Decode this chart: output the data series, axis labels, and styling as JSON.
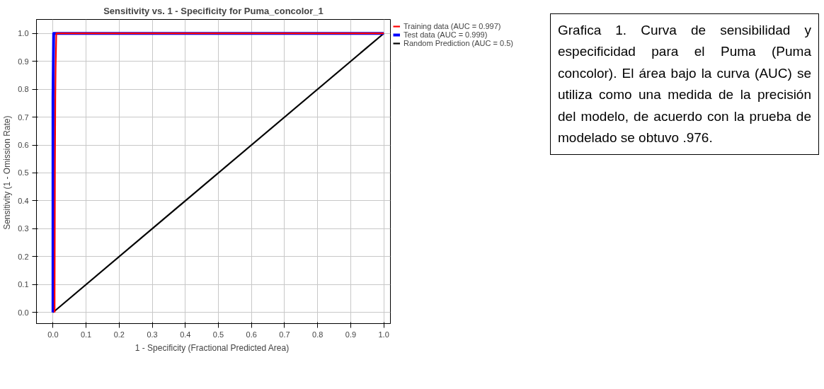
{
  "chart_data": {
    "type": "line",
    "title": "Sensitivity vs. 1 - Specificity for Puma_concolor_1",
    "xlabel": "1 - Specificity  (Fractional Predicted Area)",
    "ylabel": "Sensitivity  (1 - Omission Rate)",
    "series": [
      {
        "name": "Training data (AUC = 0.997)",
        "color": "#ff0000",
        "x": [
          0.005,
          0.005,
          0.006,
          0.007,
          0.008,
          0.01,
          1
        ],
        "values": [
          0,
          0.06,
          0.53,
          0.77,
          0.88,
          1.0,
          1.0
        ]
      },
      {
        "name": "Test data (AUC = 0.999)",
        "color": "#0000ff",
        "x": [
          0,
          0,
          0,
          0,
          0.002,
          1
        ],
        "values": [
          0,
          0.06,
          0.53,
          0.77,
          1.0,
          1.0
        ]
      },
      {
        "name": "Random Prediction (AUC = 0.5)",
        "color": "#000000",
        "x": [
          0,
          1
        ],
        "values": [
          0,
          1
        ]
      }
    ],
    "xlim": [
      -0.05,
      1.02
    ],
    "ylim": [
      -0.04,
      1.05
    ],
    "xticks": [
      {
        "value": 0,
        "label": "0.0"
      },
      0.1,
      0.2,
      0.3,
      0.4,
      0.5,
      0.6,
      0.7,
      0.8,
      0.9,
      {
        "value": 1,
        "label": "1.0"
      }
    ],
    "yticks": [
      {
        "value": 0,
        "label": "0.0"
      },
      0.1,
      0.2,
      0.3,
      0.4,
      0.5,
      0.6,
      0.7,
      0.8,
      0.9,
      {
        "value": 1,
        "label": "1.0"
      }
    ],
    "grid": true,
    "legend": "top right",
    "marker": "none",
    "line_style": "solid",
    "annotations": [
      "Grafica 1. Curva de sensibilidad y especificidad para el Puma (Puma concolor). El área bajo la curva (AUC) se utiliza como una medida de la precisión del modelo, de acuerdo con la prueba de modelado se obtuvo .976."
    ]
  }
}
